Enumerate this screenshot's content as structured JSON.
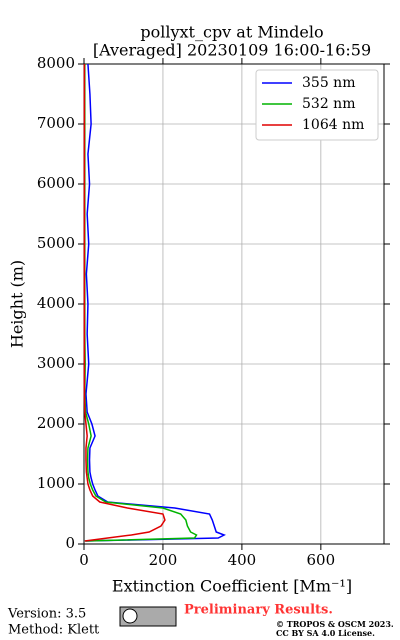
{
  "chart_data": {
    "type": "line",
    "title": "pollyxt_cpv at Mindelo",
    "subtitle": "[Averaged] 20230109 16:00-16:59",
    "x_label": "Extinction Coefficient [Mm⁻¹]",
    "y_label": "Height (m)",
    "y": [
      50,
      100,
      150,
      200,
      300,
      400,
      500,
      600,
      700,
      800,
      900,
      1000,
      1100,
      1200,
      1400,
      1600,
      1800,
      2000,
      2200,
      2500,
      3000,
      3500,
      4000,
      4500,
      5000,
      5500,
      6000,
      6500,
      7000,
      7500,
      8000
    ],
    "series": [
      {
        "name": "355 nm",
        "color": "#0000ff",
        "values": [
          5,
          340,
          355,
          335,
          330,
          325,
          318,
          230,
          60,
          35,
          28,
          22,
          18,
          15,
          14,
          15,
          28,
          20,
          8,
          5,
          12,
          8,
          10,
          6,
          12,
          8,
          14,
          10,
          18,
          15,
          10
        ]
      },
      {
        "name": "532 nm",
        "color": "#00b400",
        "values": [
          3,
          280,
          285,
          270,
          262,
          258,
          245,
          200,
          55,
          30,
          22,
          16,
          12,
          10,
          9,
          10,
          18,
          12,
          4,
          2,
          3,
          2,
          2,
          2,
          2,
          2,
          2,
          2,
          2,
          2,
          2
        ]
      },
      {
        "name": "1064 nm",
        "color": "#e00000",
        "values": [
          2,
          60,
          120,
          165,
          195,
          205,
          200,
          110,
          40,
          22,
          15,
          10,
          8,
          6,
          5,
          5,
          8,
          5,
          2,
          1,
          1,
          1,
          1,
          1,
          1,
          1,
          1,
          1,
          1,
          1,
          1
        ]
      }
    ],
    "xlim": [
      0,
      760
    ],
    "xticks": [
      0,
      200,
      400,
      600
    ],
    "ylim": [
      0,
      8000
    ],
    "yticks": [
      0,
      1000,
      2000,
      3000,
      4000,
      5000,
      6000,
      7000,
      8000
    ],
    "grid": true,
    "legend": "upper right",
    "footer": {
      "version": "Version: 3.5",
      "method": "Method: Klett",
      "preliminary": "Preliminary Results.",
      "copyright": "© TROPOS & OSCM 2023.",
      "license": "CC BY SA 4.0 License."
    }
  }
}
